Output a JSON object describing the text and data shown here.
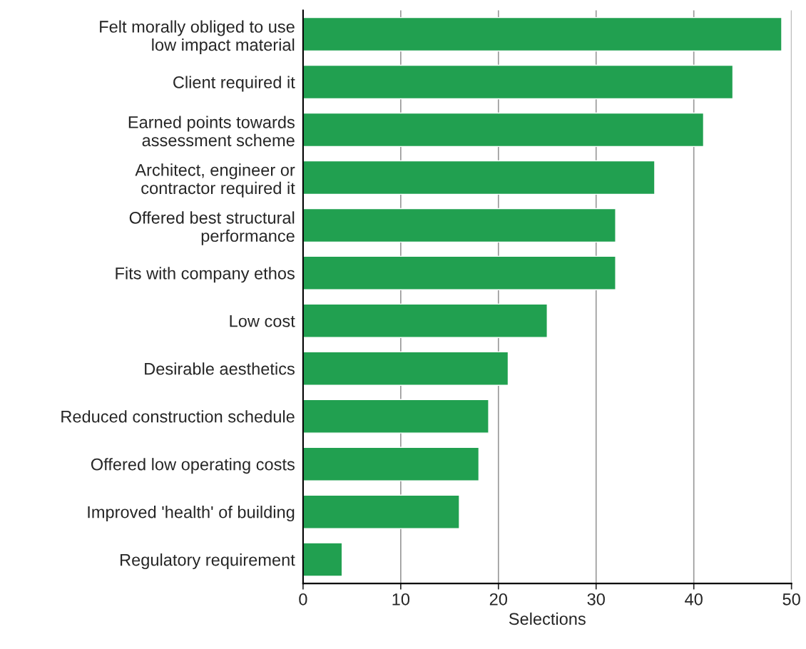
{
  "chart_data": {
    "type": "bar",
    "orientation": "horizontal",
    "xlabel": "Selections",
    "categories": [
      "Felt morally obliged to use\nlow impact material",
      "Client required it",
      "Earned points towards\nassessment scheme",
      "Architect, engineer or\ncontractor required it",
      "Offered best structural\nperformance",
      "Fits with company ethos",
      "Low cost",
      "Desirable aesthetics",
      "Reduced construction schedule",
      "Offered low operating costs",
      "Improved 'health' of building",
      "Regulatory requirement"
    ],
    "values": [
      49,
      44,
      41,
      36,
      32,
      32,
      25,
      21,
      19,
      18,
      16,
      4
    ],
    "color": "#21a050",
    "xlim": [
      0,
      50
    ],
    "xticks": [
      0,
      10,
      20,
      30,
      40,
      50
    ],
    "grid": "x",
    "legend": false
  }
}
